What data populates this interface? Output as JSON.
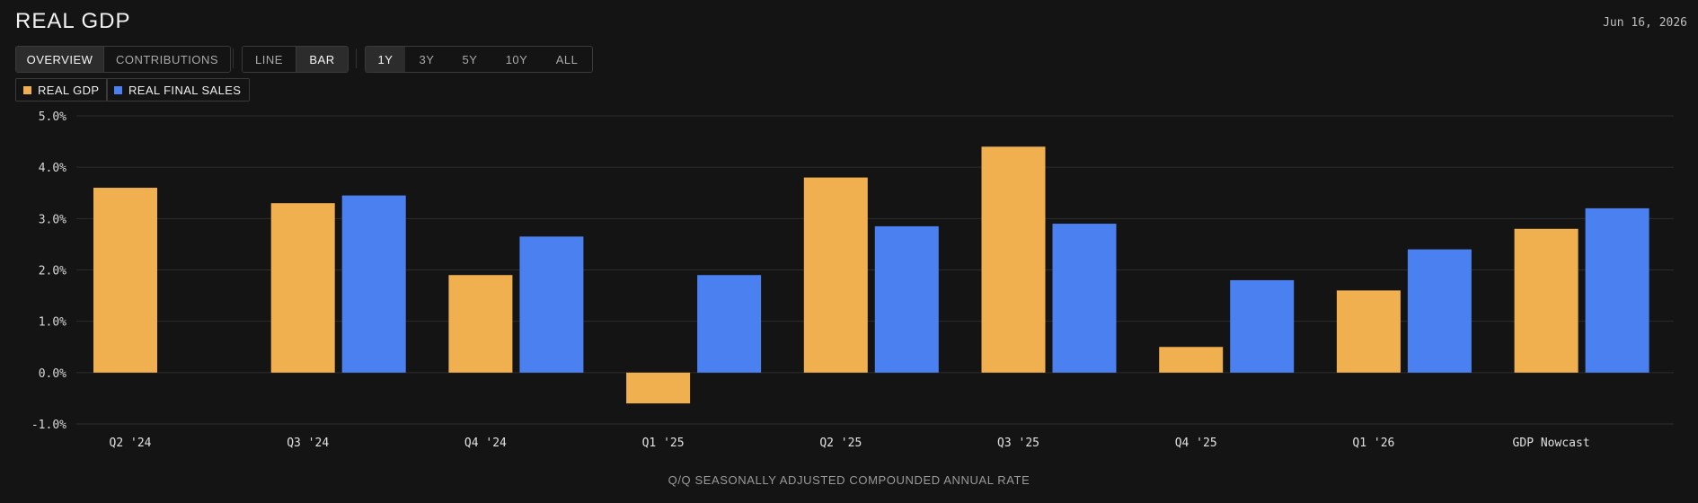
{
  "header": {
    "title": "REAL GDP",
    "date": "Jun 16, 2026"
  },
  "view_tabs": [
    {
      "label": "OVERVIEW",
      "active": true
    },
    {
      "label": "CONTRIBUTIONS",
      "active": false
    }
  ],
  "chart_type_tabs": [
    {
      "label": "LINE",
      "active": false
    },
    {
      "label": "BAR",
      "active": true
    }
  ],
  "range_tabs": [
    {
      "label": "1Y",
      "active": true
    },
    {
      "label": "3Y",
      "active": false
    },
    {
      "label": "5Y",
      "active": false
    },
    {
      "label": "10Y",
      "active": false
    },
    {
      "label": "ALL",
      "active": false
    }
  ],
  "chart_data": {
    "type": "bar",
    "categories": [
      "Q2 '24",
      "Q3 '24",
      "Q4 '24",
      "Q1 '25",
      "Q2 '25",
      "Q3 '25",
      "Q4 '25",
      "Q1 '26",
      "GDP Nowcast"
    ],
    "series": [
      {
        "name": "REAL GDP",
        "color": "#f0b050",
        "values": [
          3.6,
          3.3,
          1.9,
          -0.6,
          3.8,
          4.4,
          0.5,
          1.6,
          2.8
        ]
      },
      {
        "name": "REAL FINAL SALES",
        "color": "#4a80f0",
        "values": [
          null,
          3.45,
          2.65,
          1.9,
          2.85,
          2.9,
          1.8,
          2.4,
          3.2
        ]
      }
    ],
    "ylim": [
      -1,
      5
    ],
    "yticks": [
      5,
      4,
      3,
      2,
      1,
      0,
      -1
    ],
    "ytick_labels": [
      "5.0%",
      "4.0%",
      "3.0%",
      "2.0%",
      "1.0%",
      "0.0%",
      "-1.0%"
    ],
    "xlabel": "Q/Q SEASONALLY ADJUSTED COMPOUNDED ANNUAL RATE",
    "ylabel": "",
    "grid": true,
    "legend_position": "top-left"
  }
}
